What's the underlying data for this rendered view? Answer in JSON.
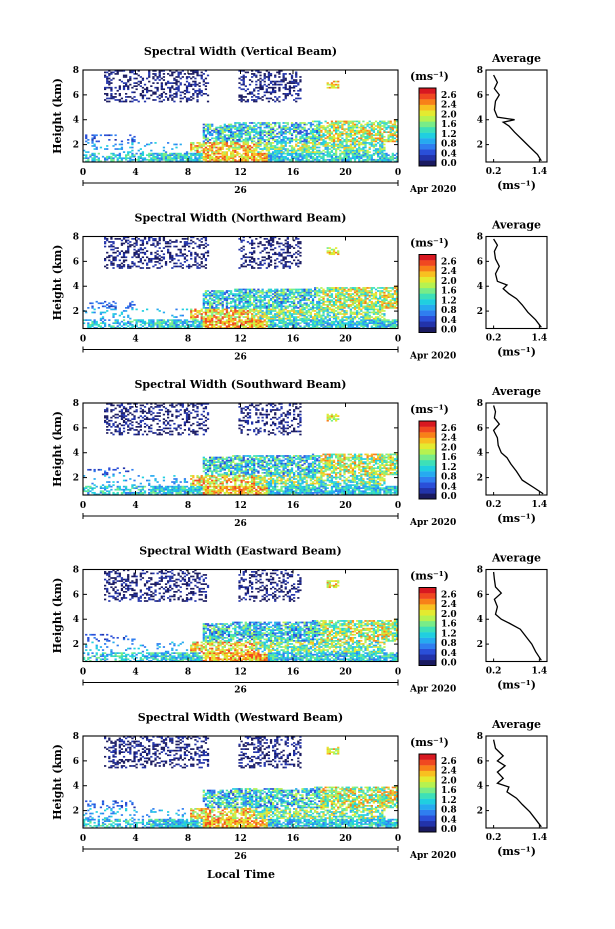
{
  "figure": {
    "xlabel_bottom": "Local Time",
    "colorbar_unit": "(ms⁻¹)",
    "profile_title": "Average",
    "profile_unit": "(ms⁻¹)"
  },
  "colorscale": {
    "colors": [
      "#1a1a60",
      "#2233aa",
      "#2a4fd8",
      "#2f7ef0",
      "#26aaf0",
      "#20cfe0",
      "#3de0b8",
      "#78ec88",
      "#b6f250",
      "#e4ea30",
      "#f8c020",
      "#f88018",
      "#f04820",
      "#d81820"
    ]
  },
  "chart_data": [
    {
      "type": "heatmap",
      "title": "Spectral Width (Vertical Beam)",
      "ylabel": "Height (km)",
      "xlabel": "",
      "x_ticks": [
        "0",
        "4",
        "8",
        "12",
        "16",
        "20",
        "0"
      ],
      "x_range_hours": [
        0,
        24
      ],
      "y_ticks": [
        "2",
        "4",
        "6",
        "8"
      ],
      "ylim": [
        0.6,
        8
      ],
      "date_labels": {
        "day": "26",
        "month_year": "Apr 2020"
      },
      "colorbar": {
        "ticks": [
          "2.6",
          "2.4",
          "2.0",
          "1.6",
          "1.2",
          "0.8",
          "0.4",
          "0.0"
        ],
        "range": [
          0,
          2.8
        ]
      },
      "profile": {
        "title": "Average",
        "xlim": [
          0,
          1.6
        ],
        "x_ticks": [
          "0.2",
          "1.4"
        ],
        "y_ticks": [
          "2",
          "4",
          "6",
          "8"
        ],
        "ylim": [
          0.6,
          8
        ],
        "values": [
          [
            1.45,
            0.7
          ],
          [
            1.35,
            1.2
          ],
          [
            1.15,
            1.8
          ],
          [
            0.95,
            2.4
          ],
          [
            0.75,
            3.0
          ],
          [
            0.6,
            3.5
          ],
          [
            0.45,
            3.8
          ],
          [
            0.75,
            4.0
          ],
          [
            0.3,
            4.2
          ],
          [
            0.22,
            4.8
          ],
          [
            0.25,
            5.5
          ],
          [
            0.35,
            6.0
          ],
          [
            0.22,
            6.5
          ],
          [
            0.3,
            7.0
          ],
          [
            0.2,
            7.6
          ]
        ]
      }
    },
    {
      "type": "heatmap",
      "title": "Spectral Width (Northward Beam)",
      "ylabel": "Height (km)",
      "xlabel": "",
      "x_ticks": [
        "0",
        "4",
        "8",
        "12",
        "16",
        "20",
        "0"
      ],
      "x_range_hours": [
        0,
        24
      ],
      "y_ticks": [
        "2",
        "4",
        "6",
        "8"
      ],
      "ylim": [
        0.6,
        8
      ],
      "date_labels": {
        "day": "26",
        "month_year": "Apr 2020"
      },
      "colorbar": {
        "ticks": [
          "2.6",
          "2.4",
          "2.0",
          "1.6",
          "1.2",
          "0.8",
          "0.4",
          "0.0"
        ],
        "range": [
          0,
          2.8
        ]
      },
      "profile": {
        "title": "Average",
        "xlim": [
          0,
          1.6
        ],
        "x_ticks": [
          "0.2",
          "1.4"
        ],
        "y_ticks": [
          "2",
          "4",
          "6",
          "8"
        ],
        "ylim": [
          0.6,
          8
        ],
        "values": [
          [
            1.45,
            0.7
          ],
          [
            1.3,
            1.3
          ],
          [
            1.1,
            1.9
          ],
          [
            0.95,
            2.5
          ],
          [
            0.8,
            3.0
          ],
          [
            0.6,
            3.4
          ],
          [
            0.45,
            3.8
          ],
          [
            0.55,
            4.1
          ],
          [
            0.3,
            4.4
          ],
          [
            0.25,
            5.0
          ],
          [
            0.35,
            5.6
          ],
          [
            0.25,
            6.2
          ],
          [
            0.22,
            6.8
          ],
          [
            0.3,
            7.3
          ],
          [
            0.2,
            7.8
          ]
        ]
      }
    },
    {
      "type": "heatmap",
      "title": "Spectral Width (Southward Beam)",
      "ylabel": "Height (km)",
      "xlabel": "",
      "x_ticks": [
        "0",
        "4",
        "8",
        "12",
        "16",
        "20",
        "0"
      ],
      "x_range_hours": [
        0,
        24
      ],
      "y_ticks": [
        "2",
        "4",
        "6",
        "8"
      ],
      "ylim": [
        0.6,
        8
      ],
      "date_labels": {
        "day": "26",
        "month_year": "Apr 2020"
      },
      "colorbar": {
        "ticks": [
          "2.6",
          "2.4",
          "2.0",
          "1.6",
          "1.2",
          "0.8",
          "0.4",
          "0.0"
        ],
        "range": [
          0,
          2.8
        ]
      },
      "profile": {
        "title": "Average",
        "xlim": [
          0,
          1.6
        ],
        "x_ticks": [
          "0.2",
          "1.4"
        ],
        "y_ticks": [
          "2",
          "4",
          "6",
          "8"
        ],
        "ylim": [
          0.6,
          8
        ],
        "values": [
          [
            1.5,
            0.7
          ],
          [
            1.25,
            1.2
          ],
          [
            0.95,
            1.8
          ],
          [
            0.8,
            2.5
          ],
          [
            0.65,
            3.1
          ],
          [
            0.55,
            3.6
          ],
          [
            0.4,
            4.0
          ],
          [
            0.32,
            4.6
          ],
          [
            0.3,
            5.2
          ],
          [
            0.2,
            5.8
          ],
          [
            0.35,
            6.3
          ],
          [
            0.22,
            6.8
          ],
          [
            0.25,
            7.3
          ],
          [
            0.2,
            7.8
          ]
        ]
      }
    },
    {
      "type": "heatmap",
      "title": "Spectral Width (Eastward Beam)",
      "ylabel": "Height (km)",
      "xlabel": "",
      "x_ticks": [
        "0",
        "4",
        "8",
        "12",
        "16",
        "20",
        "0"
      ],
      "x_range_hours": [
        0,
        24
      ],
      "y_ticks": [
        "2",
        "4",
        "6",
        "8"
      ],
      "ylim": [
        0.6,
        8
      ],
      "date_labels": {
        "day": "26",
        "month_year": "Apr 2020"
      },
      "colorbar": {
        "ticks": [
          "2.6",
          "2.4",
          "2.0",
          "1.6",
          "1.2",
          "0.8",
          "0.4",
          "0.0"
        ],
        "range": [
          0,
          2.8
        ]
      },
      "profile": {
        "title": "Average",
        "xlim": [
          0,
          1.6
        ],
        "x_ticks": [
          "0.2",
          "1.4"
        ],
        "y_ticks": [
          "2",
          "4",
          "6",
          "8"
        ],
        "ylim": [
          0.6,
          8
        ],
        "values": [
          [
            1.45,
            0.7
          ],
          [
            1.3,
            1.4
          ],
          [
            1.2,
            2.0
          ],
          [
            1.05,
            2.6
          ],
          [
            0.9,
            3.2
          ],
          [
            0.6,
            3.7
          ],
          [
            0.4,
            4.0
          ],
          [
            0.25,
            4.4
          ],
          [
            0.3,
            5.0
          ],
          [
            0.22,
            5.6
          ],
          [
            0.4,
            6.1
          ],
          [
            0.25,
            6.6
          ],
          [
            0.22,
            7.2
          ],
          [
            0.2,
            7.8
          ]
        ]
      }
    },
    {
      "type": "heatmap",
      "title": "Spectral Width (Westward Beam)",
      "ylabel": "Height (km)",
      "xlabel": "Local Time",
      "x_ticks": [
        "0",
        "4",
        "8",
        "12",
        "16",
        "20",
        "0"
      ],
      "x_range_hours": [
        0,
        24
      ],
      "y_ticks": [
        "2",
        "4",
        "6",
        "8"
      ],
      "ylim": [
        0.6,
        8
      ],
      "date_labels": {
        "day": "26",
        "month_year": "Apr 2020"
      },
      "colorbar": {
        "ticks": [
          "2.6",
          "2.4",
          "2.0",
          "1.6",
          "1.2",
          "0.8",
          "0.4",
          "0.0"
        ],
        "range": [
          0,
          2.8
        ]
      },
      "profile": {
        "title": "Average",
        "xlim": [
          0,
          1.6
        ],
        "x_ticks": [
          "0.2",
          "1.4"
        ],
        "y_ticks": [
          "2",
          "4",
          "6",
          "8"
        ],
        "ylim": [
          0.6,
          8
        ],
        "values": [
          [
            1.45,
            0.7
          ],
          [
            1.3,
            1.3
          ],
          [
            1.15,
            1.9
          ],
          [
            0.95,
            2.5
          ],
          [
            0.8,
            3.0
          ],
          [
            0.55,
            3.5
          ],
          [
            0.6,
            3.9
          ],
          [
            0.3,
            4.2
          ],
          [
            0.45,
            4.6
          ],
          [
            0.3,
            5.1
          ],
          [
            0.5,
            5.6
          ],
          [
            0.3,
            6.0
          ],
          [
            0.45,
            6.4
          ],
          [
            0.25,
            7.0
          ],
          [
            0.2,
            7.7
          ]
        ]
      }
    }
  ]
}
